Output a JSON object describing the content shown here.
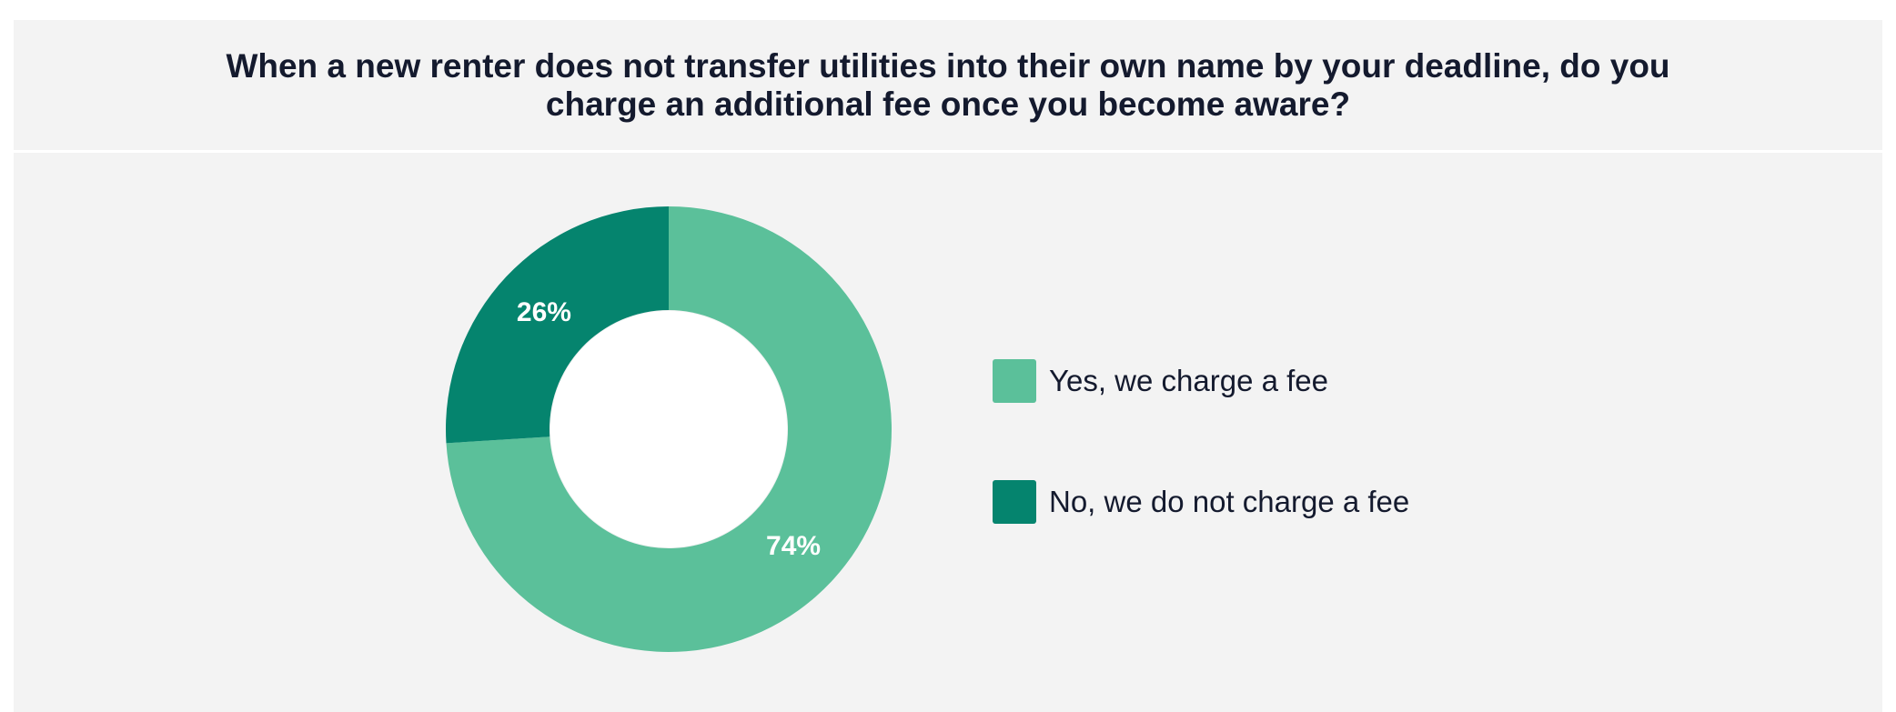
{
  "chart_data": {
    "type": "pie",
    "variant": "donut",
    "title": "When a new renter does not transfer utilities into their own name by your deadline, do you charge an additional fee once you become aware?",
    "slices": [
      {
        "label": "Yes, we charge a fee",
        "value": 74,
        "value_label": "74%",
        "color": "#5bc09a"
      },
      {
        "label": "No, we do not charge a fee",
        "value": 26,
        "value_label": "26%",
        "color": "#05846e"
      }
    ],
    "legend_position": "right",
    "start_angle": "12 o'clock, clockwise"
  },
  "colors": {
    "background": "#f3f3f3",
    "title_text": "#141a2e",
    "hole": "#ffffff"
  }
}
